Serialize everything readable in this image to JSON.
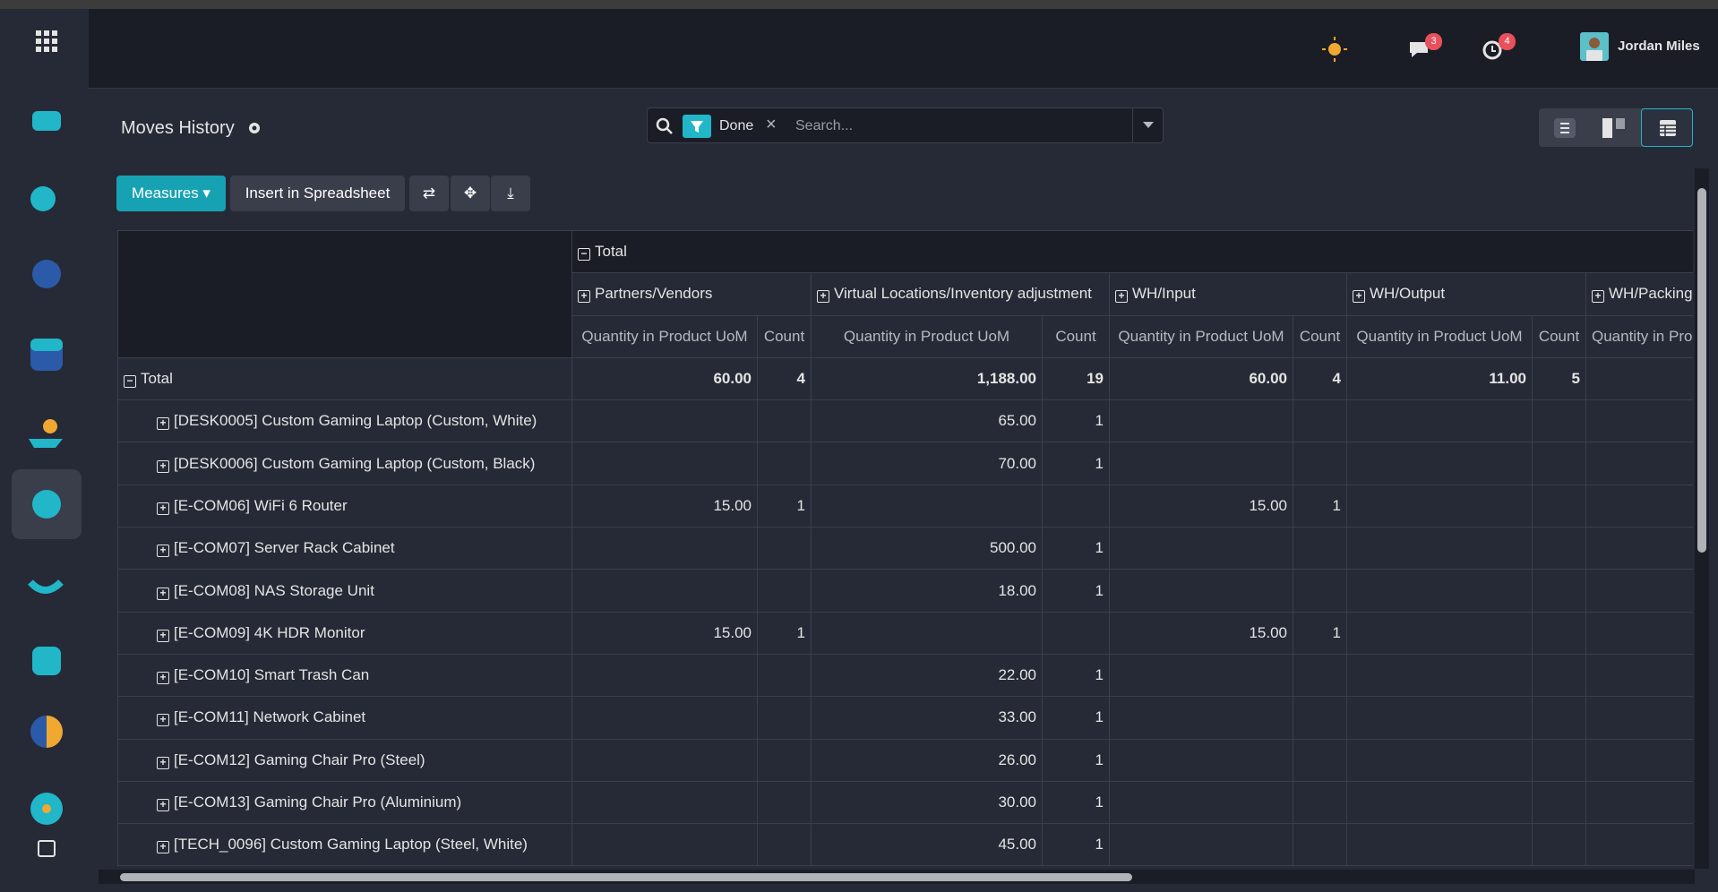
{
  "navbar": {
    "messages_badge": "3",
    "activities_badge": "4",
    "user": "Jordan Miles"
  },
  "control_panel": {
    "breadcrumb": "Moves History",
    "search_facet": "Done",
    "search_placeholder": "Search...",
    "measures_button": "Measures",
    "spreadsheet_button": "Insert in Spreadsheet"
  },
  "pivot": {
    "column_root": "Total",
    "column_groups": [
      "Partners/Vendors",
      "Virtual Locations/Inventory adjustment",
      "WH/Input",
      "WH/Output",
      "WH/Packing"
    ],
    "measures": [
      "Quantity in Product UoM",
      "Count",
      "Quantity in Product UoM",
      "Count",
      "Quantity in Product UoM",
      "Count",
      "Quantity in Product UoM",
      "Count",
      "Quantity in Product UoM"
    ],
    "row_root": "Total",
    "total_row": [
      "60.00",
      "4",
      "1,188.00",
      "19",
      "60.00",
      "4",
      "11.00",
      "5",
      null
    ],
    "rows": [
      {
        "label": "[DESK0005] Custom Gaming Laptop (Custom, White)",
        "cells": [
          null,
          null,
          "65.00",
          "1",
          null,
          null,
          null,
          null,
          null
        ]
      },
      {
        "label": "[DESK0006] Custom Gaming Laptop (Custom, Black)",
        "cells": [
          null,
          null,
          "70.00",
          "1",
          null,
          null,
          null,
          null,
          null
        ]
      },
      {
        "label": "[E-COM06] WiFi 6 Router",
        "cells": [
          "15.00",
          "1",
          null,
          null,
          "15.00",
          "1",
          null,
          null,
          null
        ]
      },
      {
        "label": "[E-COM07] Server Rack Cabinet",
        "cells": [
          null,
          null,
          "500.00",
          "1",
          null,
          null,
          null,
          null,
          null
        ]
      },
      {
        "label": "[E-COM08] NAS Storage Unit",
        "cells": [
          null,
          null,
          "18.00",
          "1",
          null,
          null,
          null,
          null,
          null
        ]
      },
      {
        "label": "[E-COM09] 4K HDR Monitor",
        "cells": [
          "15.00",
          "1",
          null,
          null,
          "15.00",
          "1",
          null,
          null,
          null
        ]
      },
      {
        "label": "[E-COM10] Smart Trash Can",
        "cells": [
          null,
          null,
          "22.00",
          "1",
          null,
          null,
          null,
          null,
          null
        ]
      },
      {
        "label": "[E-COM11] Network Cabinet",
        "cells": [
          null,
          null,
          "33.00",
          "1",
          null,
          null,
          null,
          null,
          null
        ]
      },
      {
        "label": "[E-COM12] Gaming Chair Pro (Steel)",
        "cells": [
          null,
          null,
          "26.00",
          "1",
          null,
          null,
          null,
          null,
          null
        ]
      },
      {
        "label": "[E-COM13] Gaming Chair Pro (Aluminium)",
        "cells": [
          null,
          null,
          "30.00",
          "1",
          null,
          null,
          null,
          null,
          null
        ]
      },
      {
        "label": "[TECH_0096] Custom Gaming Laptop (Steel, White)",
        "cells": [
          null,
          null,
          "45.00",
          "1",
          null,
          null,
          null,
          null,
          null
        ]
      }
    ]
  }
}
